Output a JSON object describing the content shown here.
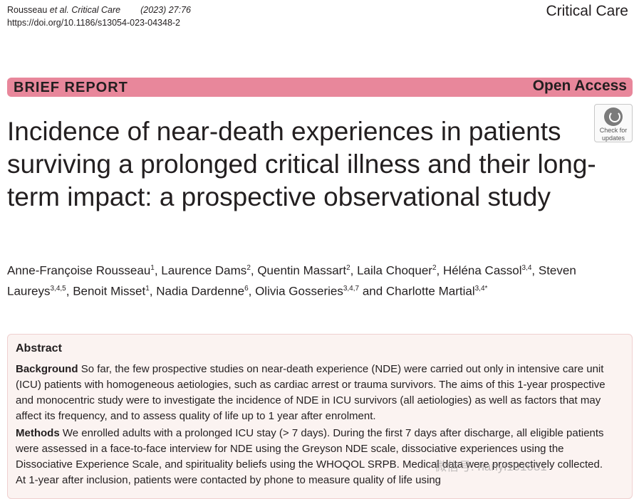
{
  "header": {
    "authors_short": "Rousseau ",
    "et_al": "et al.",
    "journal": "Critical Care",
    "year_volume": "(2023) 27:76",
    "doi": "https://doi.org/10.1186/s13054-023-04348-2",
    "journal_brand": "Critical Care"
  },
  "banner": {
    "article_type": "BRIEF REPORT",
    "access": "Open Access"
  },
  "check_updates": {
    "line1": "Check for",
    "line2": "updates"
  },
  "title": "Incidence of near-death experiences in patients surviving a prolonged critical illness and their long-term impact: a prospective observational study",
  "authors": [
    {
      "name": "Anne-Françoise Rousseau",
      "aff": "1",
      "sep": ", "
    },
    {
      "name": "Laurence Dams",
      "aff": "2",
      "sep": ", "
    },
    {
      "name": "Quentin Massart",
      "aff": "2",
      "sep": ", "
    },
    {
      "name": "Laila Choquer",
      "aff": "2",
      "sep": ", "
    },
    {
      "name": "Héléna Cassol",
      "aff": "3,4",
      "sep": ", "
    },
    {
      "name": "Steven Laureys",
      "aff": "3,4,5",
      "sep": ", "
    },
    {
      "name": "Benoit Misset",
      "aff": "1",
      "sep": ", "
    },
    {
      "name": "Nadia Dardenne",
      "aff": "6",
      "sep": ", "
    },
    {
      "name": "Olivia Gosseries",
      "aff": "3,4,7",
      "sep": " and "
    },
    {
      "name": "Charlotte Martial",
      "aff": "3,4*",
      "sep": ""
    }
  ],
  "abstract": {
    "heading": "Abstract",
    "background_label": "Background",
    "background_text": "So far, the few prospective studies on near-death experience (NDE) were carried out only in intensive care unit (ICU) patients with homogeneous aetiologies, such as cardiac arrest or trauma survivors. The aims of this 1-year prospective and monocentric study were to investigate the incidence of NDE in ICU survivors (all aetiologies) as well as factors that may affect its frequency, and to assess quality of life up to 1 year after enrolment.",
    "methods_label": "Methods",
    "methods_text": "We enrolled adults with a prolonged ICU stay (> 7 days). During the first 7 days after discharge, all eligible patients were assessed in a face-to-face interview for NDE using the Greyson NDE scale, dissociative experiences using the Dissociative Experience Scale, and spirituality beliefs using the WHOQOL SRPB. Medical data were prospectively collected. At 1-year after inclusion, patients were contacted by phone to measure quality of life using"
  },
  "watermark": "微信号: hanyi101031"
}
